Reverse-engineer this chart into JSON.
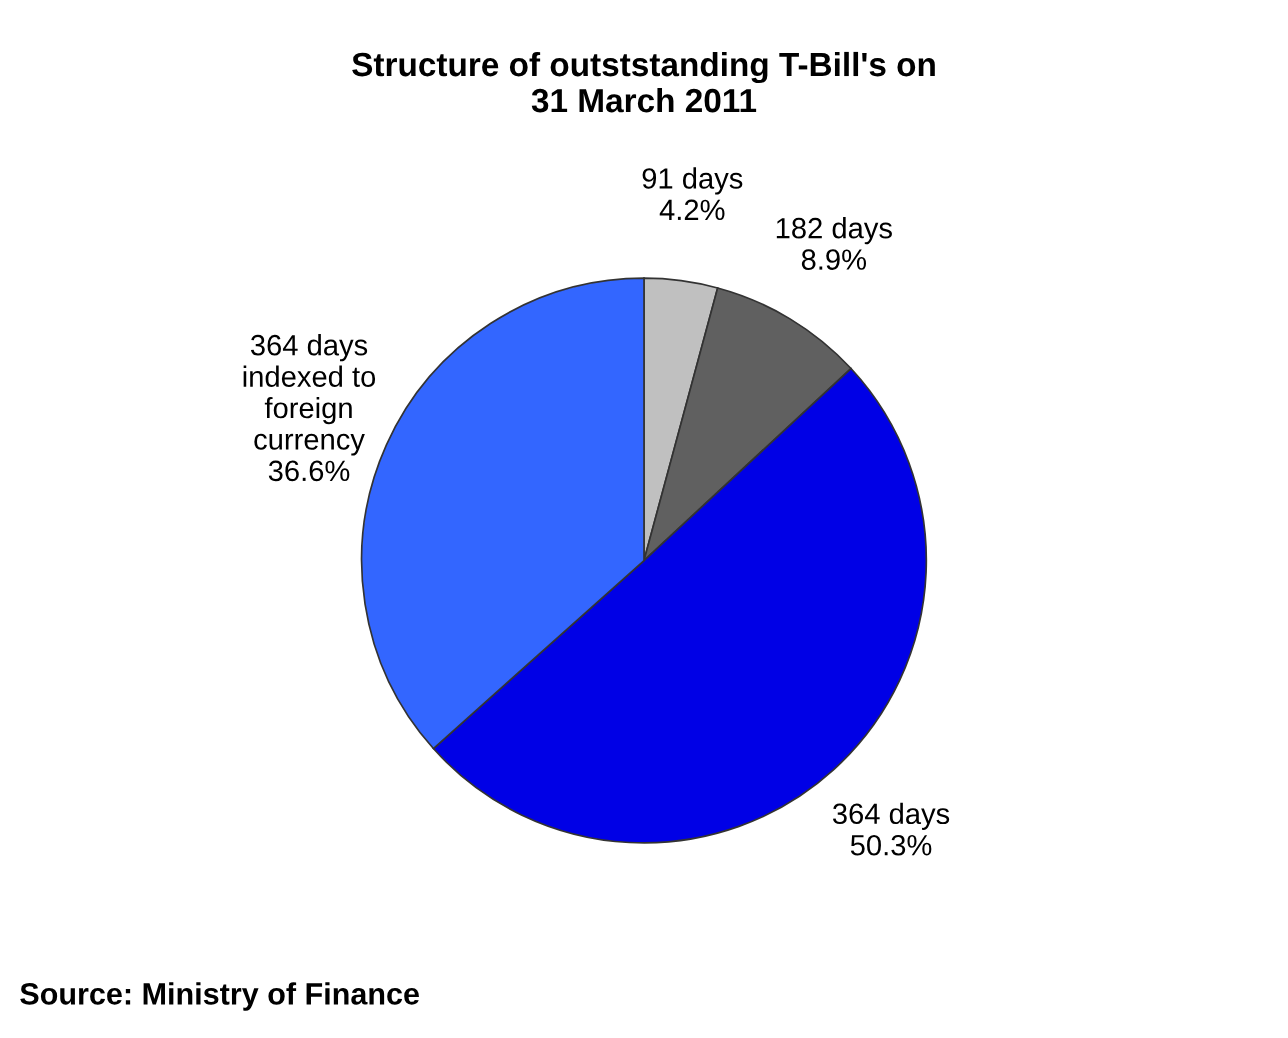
{
  "chart_data": {
    "type": "pie",
    "title": "Structure of outststanding T-Bill's on\n31 March 2011",
    "categories": [
      "91 days",
      "182 days",
      "364 days",
      "364 days\nindexed to\nforeign\ncurrency"
    ],
    "values": [
      4.2,
      8.9,
      50.3,
      36.6
    ],
    "value_labels": [
      "4.2%",
      "8.9%",
      "50.3%",
      "36.6%"
    ],
    "colors": [
      "#c0c0c0",
      "#606060",
      "#0000e6",
      "#3366ff"
    ],
    "annotations": [
      "Source: Ministry of Finance"
    ]
  }
}
